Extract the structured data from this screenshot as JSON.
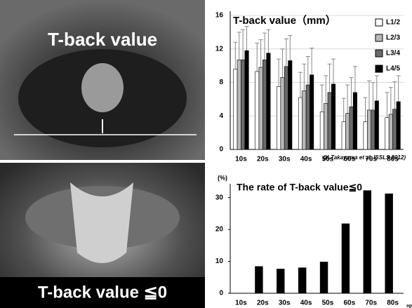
{
  "images": [
    {
      "label": "T-back value"
    },
    {
      "label": "T-back value ≦0"
    }
  ],
  "chart_data": [
    {
      "type": "bar",
      "title": "T-back value（mm）",
      "annotation": "(K.Takayama et al. ISSLS 2012)",
      "categories": [
        "10s",
        "20s",
        "30s",
        "40s",
        "50s",
        "60s",
        "70s",
        "80s"
      ],
      "series": [
        {
          "name": "L1/2",
          "color": "#ffffff",
          "values": [
            9.6,
            9.3,
            7.5,
            6.2,
            4.5,
            3.3,
            3.3,
            3.8
          ],
          "errors": [
            3.2,
            3.4,
            3.3,
            3.0,
            3.2,
            2.8,
            2.9,
            3.0
          ]
        },
        {
          "name": "L2/3",
          "color": "#b8b8b8",
          "values": [
            10.7,
            9.8,
            8.6,
            7.0,
            5.5,
            4.3,
            4.7,
            4.2
          ],
          "errors": [
            3.3,
            3.3,
            3.4,
            3.2,
            3.3,
            3.4,
            3.5,
            3.2
          ]
        },
        {
          "name": "L3/4",
          "color": "#6a6a6a",
          "values": [
            10.7,
            10.7,
            9.9,
            7.7,
            6.8,
            5.1,
            4.7,
            4.8
          ],
          "errors": [
            3.6,
            3.2,
            3.3,
            3.4,
            3.4,
            3.5,
            3.3,
            3.3
          ]
        },
        {
          "name": "L4/5",
          "color": "#000000",
          "values": [
            11.8,
            11.5,
            10.6,
            8.9,
            7.8,
            6.8,
            5.8,
            5.7
          ],
          "errors": [
            2.9,
            2.8,
            3.0,
            3.2,
            3.0,
            3.1,
            3.0,
            3.1
          ]
        }
      ],
      "ylim": [
        0,
        16
      ],
      "yticks": [
        0,
        4,
        8,
        12,
        16
      ],
      "grid": true,
      "legend": "top-right"
    },
    {
      "type": "bar",
      "title": "The rate of T-back value≦0",
      "ylabel": "(%)",
      "xlabel": "age",
      "categories": [
        "10s",
        "20s",
        "30s",
        "40s",
        "50s",
        "60s",
        "70s",
        "80s"
      ],
      "series": [
        {
          "color": "#000000",
          "values": [
            0,
            8.4,
            7.6,
            8,
            9.8,
            21.8,
            32.2,
            31.2
          ]
        }
      ],
      "ylim": [
        0,
        33
      ],
      "yticks": [
        0,
        10,
        20,
        30
      ],
      "grid": false
    }
  ]
}
